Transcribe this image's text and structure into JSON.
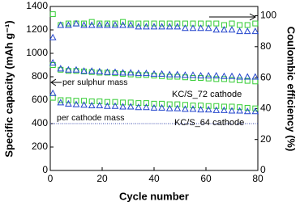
{
  "chart_data": {
    "type": "scatter",
    "x_label": "Cycle number",
    "y_label": "Specific capacity (mAh g⁻¹)",
    "y2_label": "Coulombic efficiency (%)",
    "xlim": [
      0,
      80
    ],
    "xticks": [
      0,
      20,
      40,
      60,
      80
    ],
    "ylim": [
      0,
      1400
    ],
    "yticks": [
      0,
      200,
      400,
      600,
      800,
      1000,
      1200,
      1400
    ],
    "y2lim": [
      0,
      106
    ],
    "y2ticks": [
      0,
      20,
      40,
      60,
      80,
      100
    ],
    "annotations": {
      "sulphur": "per sulphur mass",
      "cathode": "per cathode mass",
      "cathode_line": 400
    },
    "x": [
      1,
      4,
      7,
      10,
      13,
      16,
      19,
      22,
      25,
      28,
      31,
      34,
      37,
      40,
      43,
      46,
      49,
      52,
      55,
      58,
      61,
      64,
      67,
      70,
      73,
      76,
      79
    ],
    "groups": [
      {
        "name": "KC/S_72 cathode",
        "color": "#33cc33",
        "marker": "square",
        "capacity_sulphur": [
          900,
          860,
          850,
          850,
          845,
          840,
          835,
          835,
          830,
          825,
          820,
          815,
          815,
          810,
          805,
          800,
          800,
          795,
          790,
          790,
          785,
          780,
          780,
          775,
          770,
          765,
          760
        ],
        "capacity_cathode": [
          620,
          600,
          600,
          595,
          595,
          590,
          590,
          585,
          585,
          580,
          580,
          575,
          575,
          570,
          570,
          565,
          565,
          560,
          555,
          555,
          550,
          550,
          545,
          545,
          540,
          535,
          530
        ],
        "efficiency": [
          101,
          94,
          95,
          95,
          95,
          96,
          95,
          95,
          95,
          96,
          95,
          95,
          95,
          95,
          95,
          95,
          95,
          95,
          95,
          95,
          95,
          95,
          94,
          95,
          94,
          94,
          95
        ]
      },
      {
        "name": "KC/S_64 cathode",
        "color": "#2244cc",
        "marker": "triangle",
        "capacity_sulphur": [
          920,
          870,
          860,
          860,
          850,
          850,
          845,
          840,
          840,
          835,
          835,
          830,
          830,
          825,
          825,
          820,
          820,
          815,
          815,
          810,
          810,
          810,
          805,
          805,
          800,
          800,
          800
        ],
        "capacity_cathode": [
          660,
          580,
          570,
          565,
          560,
          555,
          555,
          550,
          550,
          545,
          545,
          540,
          540,
          535,
          535,
          530,
          530,
          525,
          525,
          520,
          520,
          515,
          515,
          510,
          510,
          505,
          505
        ],
        "efficiency": [
          86,
          94,
          94,
          95,
          94,
          94,
          94,
          94,
          94,
          94,
          94,
          93,
          93,
          93,
          93,
          93,
          93,
          92,
          92,
          92,
          92,
          91,
          91,
          91,
          90,
          90,
          90
        ]
      }
    ]
  }
}
